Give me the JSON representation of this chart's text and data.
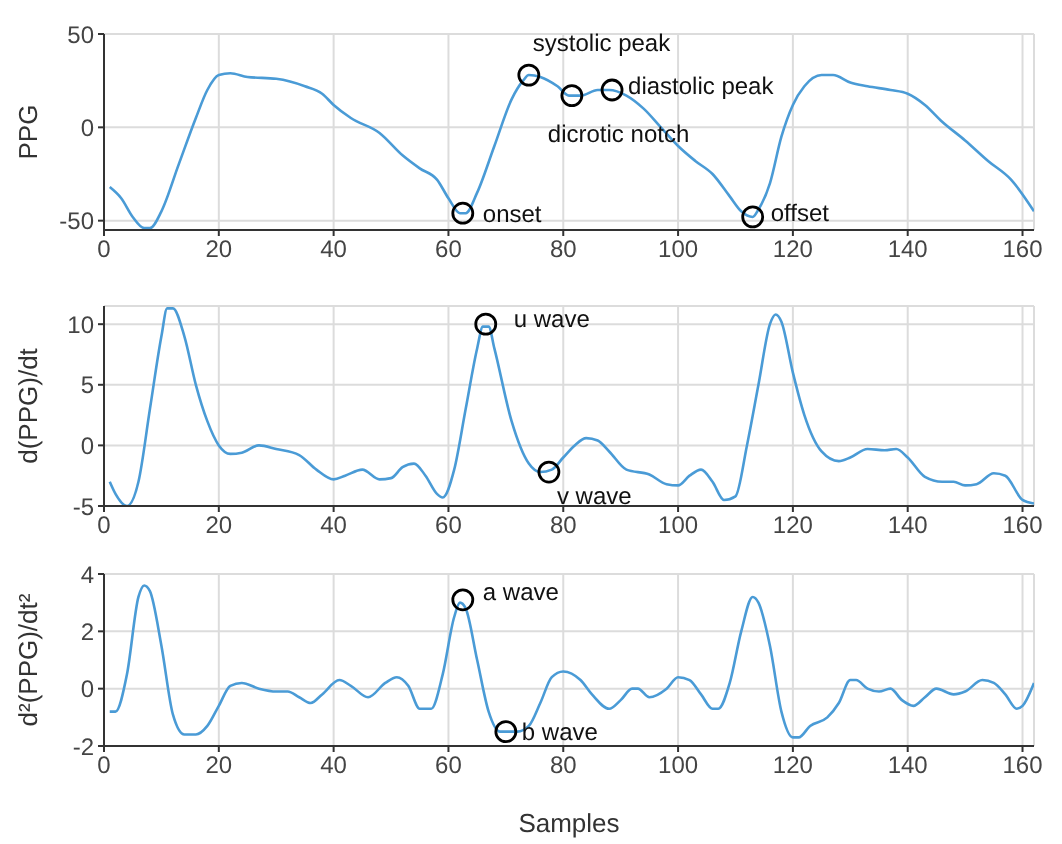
{
  "chart_data": [
    {
      "type": "line",
      "ylabel": "PPG",
      "xlim": [
        0,
        162
      ],
      "xticks": [
        0,
        20,
        40,
        60,
        80,
        100,
        120,
        140,
        160
      ],
      "ylim": [
        -55,
        50
      ],
      "yticks": [
        -50,
        0,
        50
      ],
      "grid": true,
      "marker": "none",
      "line_style": "solid",
      "series": [
        {
          "color": "#4a9bd6",
          "x": [
            1,
            3,
            5,
            7,
            8,
            10,
            13,
            16,
            18,
            20,
            22,
            25,
            30,
            35,
            38,
            40,
            43,
            48,
            52,
            55,
            58,
            60,
            62,
            63,
            65,
            68,
            71,
            73,
            74,
            76,
            79,
            81,
            83,
            86,
            88,
            91,
            94,
            97,
            100,
            103,
            106,
            109,
            111,
            113,
            114,
            116,
            118,
            120,
            122,
            125,
            127,
            130,
            133,
            137,
            140,
            143,
            146,
            150,
            154,
            158,
            162
          ],
          "values": [
            -32,
            -38,
            -48,
            -54,
            -54,
            -45,
            -20,
            5,
            20,
            28,
            29,
            27,
            26,
            22,
            18,
            12,
            5,
            -3,
            -15,
            -22,
            -28,
            -38,
            -46,
            -46,
            -35,
            -10,
            15,
            25,
            28,
            27,
            22,
            17,
            17,
            20,
            20,
            17,
            10,
            0,
            -10,
            -18,
            -25,
            -37,
            -45,
            -48,
            -44,
            -30,
            -5,
            12,
            22,
            28,
            28,
            24,
            22,
            20,
            18,
            12,
            3,
            -7,
            -18,
            -28,
            -45
          ]
        }
      ],
      "annotations": [
        {
          "text": "onset",
          "x": 62.5,
          "y": -46
        },
        {
          "text": "systolic peak",
          "x": 74,
          "y": 28
        },
        {
          "text": "dicrotic notch",
          "x": 81.5,
          "y": 17
        },
        {
          "text": "diastolic peak",
          "x": 88.5,
          "y": 20
        },
        {
          "text": "offset",
          "x": 113,
          "y": -48
        }
      ]
    },
    {
      "type": "line",
      "ylabel": "d(PPG)/dt",
      "xlim": [
        0,
        162
      ],
      "xticks": [
        0,
        20,
        40,
        60,
        80,
        100,
        120,
        140,
        160
      ],
      "ylim": [
        -5,
        11.5
      ],
      "yticks": [
        -5,
        0,
        5,
        10
      ],
      "grid": true,
      "marker": "none",
      "line_style": "solid",
      "series": [
        {
          "color": "#4a9bd6",
          "x": [
            1,
            2,
            4,
            6,
            8,
            10,
            11,
            12,
            14,
            16,
            18,
            20,
            22,
            24,
            27,
            30,
            34,
            37,
            40,
            42,
            45,
            48,
            50,
            52,
            54,
            56,
            58,
            59,
            61,
            63,
            65,
            66,
            67,
            68,
            71,
            74,
            76,
            78,
            80,
            82,
            84,
            86,
            88,
            91,
            95,
            98,
            100,
            102,
            104,
            106,
            108,
            110,
            112,
            114,
            116,
            117,
            118,
            120,
            122,
            125,
            128,
            130,
            133,
            136,
            138,
            140,
            143,
            146,
            148,
            150,
            152,
            155,
            157,
            160,
            162
          ],
          "values": [
            -3,
            -4,
            -5,
            -3,
            3,
            9,
            11.3,
            11.3,
            9,
            5,
            2,
            0,
            -0.7,
            -0.6,
            0,
            -0.3,
            -0.8,
            -2,
            -2.8,
            -2.5,
            -2,
            -2.8,
            -2.7,
            -1.8,
            -1.5,
            -2.5,
            -4,
            -4.3,
            -2,
            3,
            8,
            9.8,
            9.8,
            8,
            2,
            -1.5,
            -2.2,
            -2,
            -1,
            0,
            0.6,
            0.4,
            -0.5,
            -2,
            -2.4,
            -3.2,
            -3.3,
            -2.5,
            -2,
            -3,
            -4.5,
            -4.2,
            0,
            5,
            10,
            10.8,
            10.2,
            6,
            2.5,
            -0.5,
            -1.3,
            -1,
            -0.3,
            -0.4,
            -0.3,
            -1,
            -2.6,
            -3,
            -3,
            -3.3,
            -3.2,
            -2.3,
            -2.5,
            -4.5,
            -4.8
          ]
        }
      ],
      "annotations": [
        {
          "text": "u wave",
          "x": 66.5,
          "y": 10
        },
        {
          "text": "v wave",
          "x": 77.5,
          "y": -2.2
        }
      ]
    },
    {
      "type": "line",
      "xlabel": "Samples",
      "ylabel": "d²(PPG)/dt²",
      "xlim": [
        0,
        162
      ],
      "xticks": [
        0,
        20,
        40,
        60,
        80,
        100,
        120,
        140,
        160
      ],
      "ylim": [
        -2,
        4
      ],
      "yticks": [
        -2,
        0,
        2,
        4
      ],
      "grid": true,
      "marker": "none",
      "line_style": "solid",
      "series": [
        {
          "color": "#4a9bd6",
          "x": [
            1,
            2,
            4,
            6,
            7,
            8,
            10,
            12,
            14,
            16,
            18,
            20,
            22,
            24,
            27,
            30,
            32,
            34,
            36,
            38,
            41,
            43,
            46,
            49,
            51,
            53,
            55,
            57,
            59,
            61,
            62,
            63,
            65,
            67,
            69,
            72,
            74,
            76,
            78,
            80,
            83,
            85,
            88,
            90,
            92,
            93,
            95,
            98,
            100,
            102,
            104,
            106,
            107,
            109,
            111,
            113,
            114,
            116,
            118,
            120,
            121,
            123,
            126,
            128,
            130,
            131,
            133,
            135,
            137,
            139,
            141,
            143,
            145,
            148,
            150,
            153,
            155,
            157,
            159,
            160,
            162
          ],
          "values": [
            -0.8,
            -0.8,
            0.5,
            3.2,
            3.6,
            3.4,
            1.5,
            -0.9,
            -1.6,
            -1.6,
            -1.3,
            -0.6,
            0.1,
            0.2,
            0,
            -0.1,
            -0.1,
            -0.3,
            -0.5,
            -0.2,
            0.3,
            0.1,
            -0.3,
            0.2,
            0.4,
            0.1,
            -0.7,
            -0.7,
            0.5,
            2.5,
            3.0,
            2.8,
            1,
            -0.8,
            -1.5,
            -1.5,
            -1.3,
            -0.5,
            0.4,
            0.6,
            0.3,
            -0.2,
            -0.7,
            -0.4,
            0,
            0,
            -0.3,
            0,
            0.4,
            0.3,
            -0.2,
            -0.7,
            -0.7,
            0.2,
            2,
            3.2,
            3.0,
            1.5,
            -0.8,
            -1.7,
            -1.7,
            -1.3,
            -1,
            -0.5,
            0.3,
            0.3,
            0,
            -0.1,
            0,
            -0.4,
            -0.6,
            -0.3,
            0,
            -0.2,
            -0.1,
            0.3,
            0.2,
            -0.2,
            -0.7,
            -0.6,
            0.2
          ]
        }
      ],
      "annotations": [
        {
          "text": "a wave",
          "x": 62.5,
          "y": 3.1
        },
        {
          "text": "b wave",
          "x": 70,
          "y": -1.5
        }
      ]
    }
  ]
}
